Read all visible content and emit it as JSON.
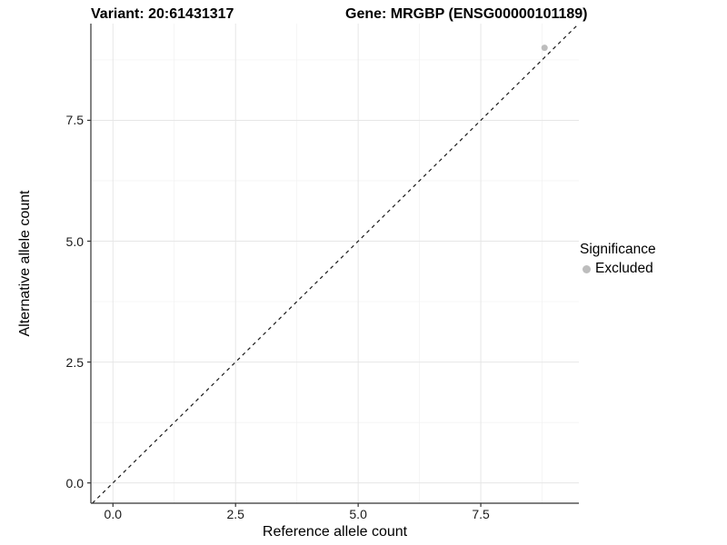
{
  "header": {
    "variant_title": "Variant: 20:61431317",
    "gene_title": "Gene: MRGBP (ENSG00000101189)"
  },
  "chart_data": {
    "type": "scatter",
    "xlabel": "Reference allele count",
    "ylabel": "Alternative allele count",
    "xlim": [
      -0.45,
      9.5
    ],
    "ylim": [
      -0.42,
      9.5
    ],
    "xticks": [
      {
        "value": 0.0,
        "label": "0.0"
      },
      {
        "value": 2.5,
        "label": "2.5"
      },
      {
        "value": 5.0,
        "label": "5.0"
      },
      {
        "value": 7.5,
        "label": "7.5"
      }
    ],
    "yticks": [
      {
        "value": 0.0,
        "label": "0.0"
      },
      {
        "value": 2.5,
        "label": "2.5"
      },
      {
        "value": 5.0,
        "label": "5.0"
      },
      {
        "value": 7.5,
        "label": "7.5"
      }
    ],
    "minor_ticks": [
      1.25,
      3.75,
      6.25,
      8.75
    ],
    "grid": true,
    "reference_line": {
      "type": "identity",
      "slope": 1,
      "intercept": 0,
      "style": "dashed",
      "color": "#1a1a1a"
    },
    "series": [
      {
        "name": "Excluded",
        "color": "#bdbdbd",
        "points": [
          [
            8.8,
            9.0
          ]
        ]
      }
    ],
    "legend": {
      "title": "Significance",
      "position": "right",
      "items": [
        {
          "label": "Excluded",
          "color": "#bdbdbd"
        }
      ]
    }
  },
  "colors": {
    "background": "#ffffff",
    "grid_major": "#e6e6e6",
    "grid_minor": "#f1f1f1",
    "axis_line": "#333333",
    "tick_mark": "#333333",
    "point": "#bdbdbd"
  }
}
